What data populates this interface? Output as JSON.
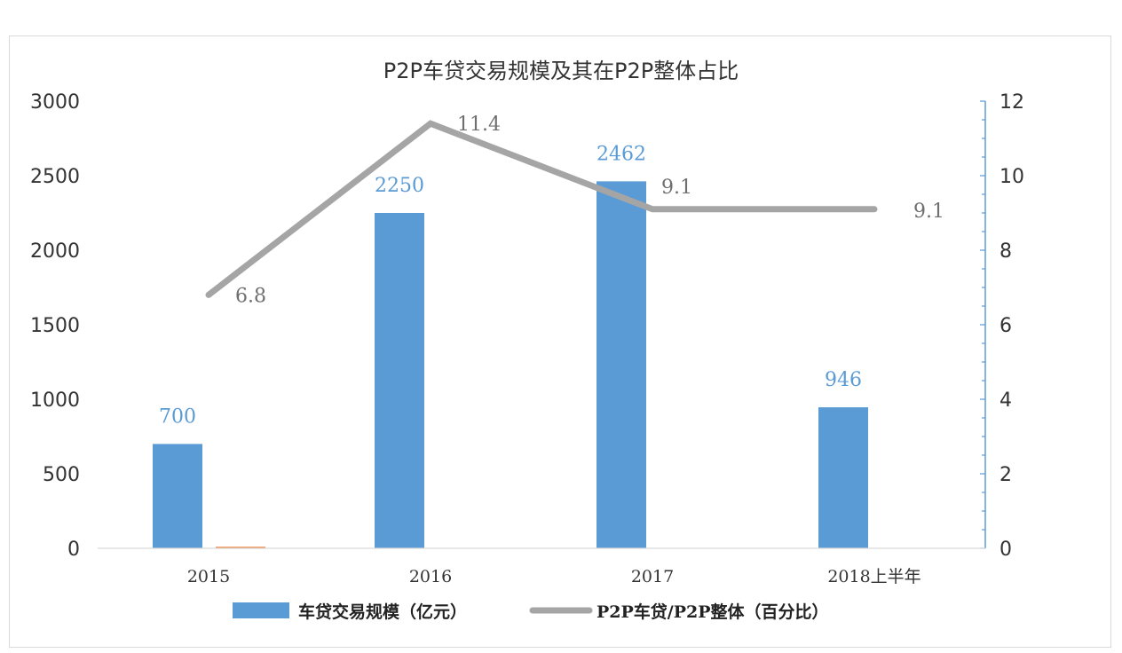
{
  "chart_data": {
    "type": "bar",
    "title": "P2P车贷交易规模及其在P2P整体占比",
    "categories": [
      "2015",
      "2016",
      "2017",
      "2018上半年"
    ],
    "series": [
      {
        "name": "车贷交易规模（亿元）",
        "type": "bar",
        "axis": "left",
        "values": [
          700,
          2250,
          2462,
          946
        ],
        "color": "#5b9bd5"
      },
      {
        "name": "P2P车贷/P2P整体（百分比）",
        "type": "line",
        "axis": "right",
        "values": [
          6.8,
          11.4,
          9.1,
          9.1
        ],
        "color": "#a5a5a5"
      }
    ],
    "extra_bar": {
      "category": "2015",
      "value": 10,
      "color": "#ed7d31"
    },
    "ylim_left": [
      0,
      3000
    ],
    "yticks_left": [
      "0",
      "500",
      "1000",
      "1500",
      "2000",
      "2500",
      "3000"
    ],
    "ylim_right": [
      0,
      12
    ],
    "yticks_right": [
      "0",
      "2",
      "4",
      "6",
      "8",
      "10",
      "12"
    ],
    "bar_labels": [
      "700",
      "2250",
      "2462",
      "946"
    ],
    "line_labels": [
      "6.8",
      "11.4",
      "9.1",
      "9.1"
    ],
    "legend_position": "bottom",
    "grid": false
  }
}
